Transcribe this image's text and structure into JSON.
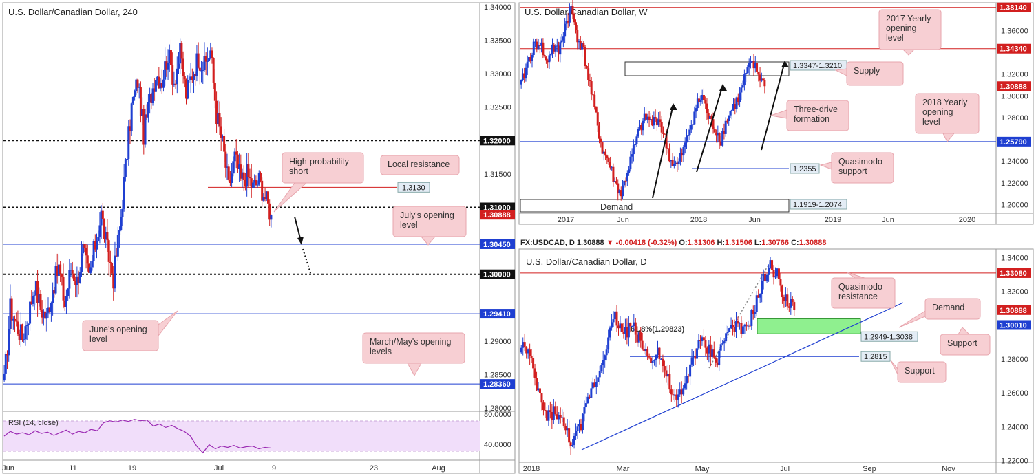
{
  "colors": {
    "bull": "#1f3fd1",
    "bear": "#d21f1f",
    "red_level": "#d21f1f",
    "blue_level": "#1f3fd1",
    "callout_bg": "#f7cfd3",
    "callout_border": "#e7a5ad",
    "rsi_bg": "#f1defa",
    "rsi_line": "#9b2ab3",
    "demand_zone": "#8ff08f",
    "fib_text": "#38c6b0"
  },
  "chart_data": [
    {
      "id": "h4",
      "type": "candlestick",
      "title": "U.S. Dollar/Canadian Dollar, 240",
      "timeframe": "240",
      "x_ticks": [
        "Jun",
        "11",
        "19",
        "Jul",
        "9",
        "23",
        "Aug"
      ],
      "ylim": [
        1.2795,
        1.3405
      ],
      "y_ticks": [
        "1.34000",
        "1.33500",
        "1.33000",
        "1.32500",
        "1.31500",
        "1.29000",
        "1.28500",
        "1.28000"
      ],
      "tick_values": [
        1.34,
        1.335,
        1.33,
        1.325,
        1.315,
        1.29,
        1.285,
        1.28
      ],
      "price_path": [
        1.2838,
        1.295,
        1.2925,
        1.2905,
        1.294,
        1.2985,
        1.295,
        1.2935,
        1.298,
        1.301,
        1.2955,
        1.301,
        1.299,
        1.3035,
        1.2995,
        1.3045,
        1.309,
        1.3035,
        1.2995,
        1.3065,
        1.316,
        1.325,
        1.329,
        1.321,
        1.326,
        1.33,
        1.329,
        1.333,
        1.329,
        1.333,
        1.327,
        1.33,
        1.3325,
        1.331,
        1.3335,
        1.324,
        1.3195,
        1.313,
        1.3175,
        1.314,
        1.315,
        1.313,
        1.314,
        1.3115,
        1.3089
      ],
      "levels": [
        {
          "value": 1.32,
          "label": "1.32000",
          "style": "dotted"
        },
        {
          "value": 1.31,
          "label": "1.31000",
          "style": "dotted"
        },
        {
          "value": 1.3089,
          "label": "1.30888",
          "style": "price"
        },
        {
          "value": 1.3045,
          "label": "1.30450",
          "style": "blue"
        },
        {
          "value": 1.3,
          "label": "1.30000",
          "style": "dotted"
        },
        {
          "value": 1.2941,
          "label": "1.29410",
          "style": "blue"
        },
        {
          "value": 1.2836,
          "label": "1.28360",
          "style": "blue"
        },
        {
          "value": 1.313,
          "label": "1.3130",
          "style": "red-local"
        }
      ],
      "annotations": [
        "High-probability short",
        "Local resistance",
        "July's opening level",
        "June's opening level",
        "March/May's opening levels"
      ],
      "rsi": {
        "label": "RSI (14, close)",
        "y_ticks": [
          "80.0000",
          "40.0000"
        ],
        "values": [
          55,
          62,
          58,
          60,
          57,
          63,
          59,
          61,
          56,
          60,
          64,
          58,
          62,
          60,
          65,
          63,
          75,
          78,
          76,
          79,
          77,
          80,
          78,
          79,
          70,
          73,
          68,
          71,
          66,
          62,
          55,
          40,
          30,
          42,
          36,
          40,
          38,
          41,
          37,
          39,
          40,
          36,
          38,
          37
        ]
      }
    },
    {
      "id": "weekly",
      "type": "candlestick",
      "title": "U.S. Dollar/Canadian Dollar, W",
      "timeframe": "W",
      "x_ticks": [
        "2017",
        "Jun",
        "2018",
        "Jun",
        "2019",
        "Jun",
        "2020"
      ],
      "ylim": [
        1.192,
        1.385
      ],
      "y_ticks": [
        "1.36000",
        "1.32000",
        "1.30000",
        "1.28000",
        "1.24000",
        "1.22000",
        "1.20000"
      ],
      "tick_values": [
        1.36,
        1.32,
        1.3,
        1.28,
        1.24,
        1.22,
        1.2
      ],
      "price_path": [
        1.31,
        1.33,
        1.345,
        1.35,
        1.33,
        1.345,
        1.34,
        1.365,
        1.38,
        1.355,
        1.34,
        1.31,
        1.28,
        1.25,
        1.24,
        1.22,
        1.21,
        1.23,
        1.25,
        1.27,
        1.28,
        1.275,
        1.28,
        1.26,
        1.24,
        1.235,
        1.25,
        1.27,
        1.29,
        1.3,
        1.28,
        1.27,
        1.26,
        1.28,
        1.29,
        1.3,
        1.32,
        1.33,
        1.32,
        1.3089
      ],
      "levels": [
        {
          "value": 1.3814,
          "label": "1.38140",
          "style": "red"
        },
        {
          "value": 1.3434,
          "label": "1.34340",
          "style": "red"
        },
        {
          "value": 1.3089,
          "label": "1.30888",
          "style": "price"
        },
        {
          "value": 1.2579,
          "label": "1.25790",
          "style": "blue"
        }
      ],
      "zones": [
        "1.3347-1.3210",
        "1.2355",
        "1.1919-1.2074"
      ],
      "annotations": [
        "2017 Yearly opening level",
        "Supply",
        "Three-drive formation",
        "2018 Yearly opening level",
        "Quasimodo support",
        "Demand"
      ]
    },
    {
      "id": "daily",
      "type": "candlestick",
      "title": "U.S. Dollar/Canadian Dollar, D",
      "symbol": "FX:USDCAD, D",
      "ohlc": {
        "last": "1.30888",
        "change": "-0.00418 (-0.32%)",
        "open": "1.31306",
        "high": "1.31506",
        "low": "1.30766",
        "close": "1.30888"
      },
      "x_ticks": [
        "2018",
        "Mar",
        "May",
        "Jul",
        "Sep",
        "Nov"
      ],
      "ylim": [
        1.219,
        1.345
      ],
      "y_ticks": [
        "1.34000",
        "1.32000",
        "1.28000",
        "1.26000",
        "1.24000",
        "1.22000"
      ],
      "tick_values": [
        1.34,
        1.32,
        1.28,
        1.26,
        1.24,
        1.22
      ],
      "price_path": [
        1.29,
        1.28,
        1.26,
        1.245,
        1.25,
        1.24,
        1.23,
        1.24,
        1.26,
        1.27,
        1.29,
        1.305,
        1.295,
        1.3,
        1.29,
        1.28,
        1.285,
        1.27,
        1.255,
        1.26,
        1.28,
        1.29,
        1.285,
        1.28,
        1.295,
        1.3,
        1.295,
        1.305,
        1.32,
        1.335,
        1.33,
        1.315,
        1.3089
      ],
      "levels": [
        {
          "value": 1.3308,
          "label": "1.33080",
          "style": "red"
        },
        {
          "value": 1.3089,
          "label": "1.30888",
          "style": "price"
        },
        {
          "value": 1.3001,
          "label": "1.30010",
          "style": "blue"
        },
        {
          "value": 1.2815,
          "label": "1.2815",
          "style": "blue-tag"
        }
      ],
      "zones": [
        "1.2949-1.3038"
      ],
      "fib_label": "61.8%(1.29823)",
      "annotations": [
        "Quasimodo resistance",
        "Demand",
        "Support",
        "Support"
      ]
    }
  ]
}
